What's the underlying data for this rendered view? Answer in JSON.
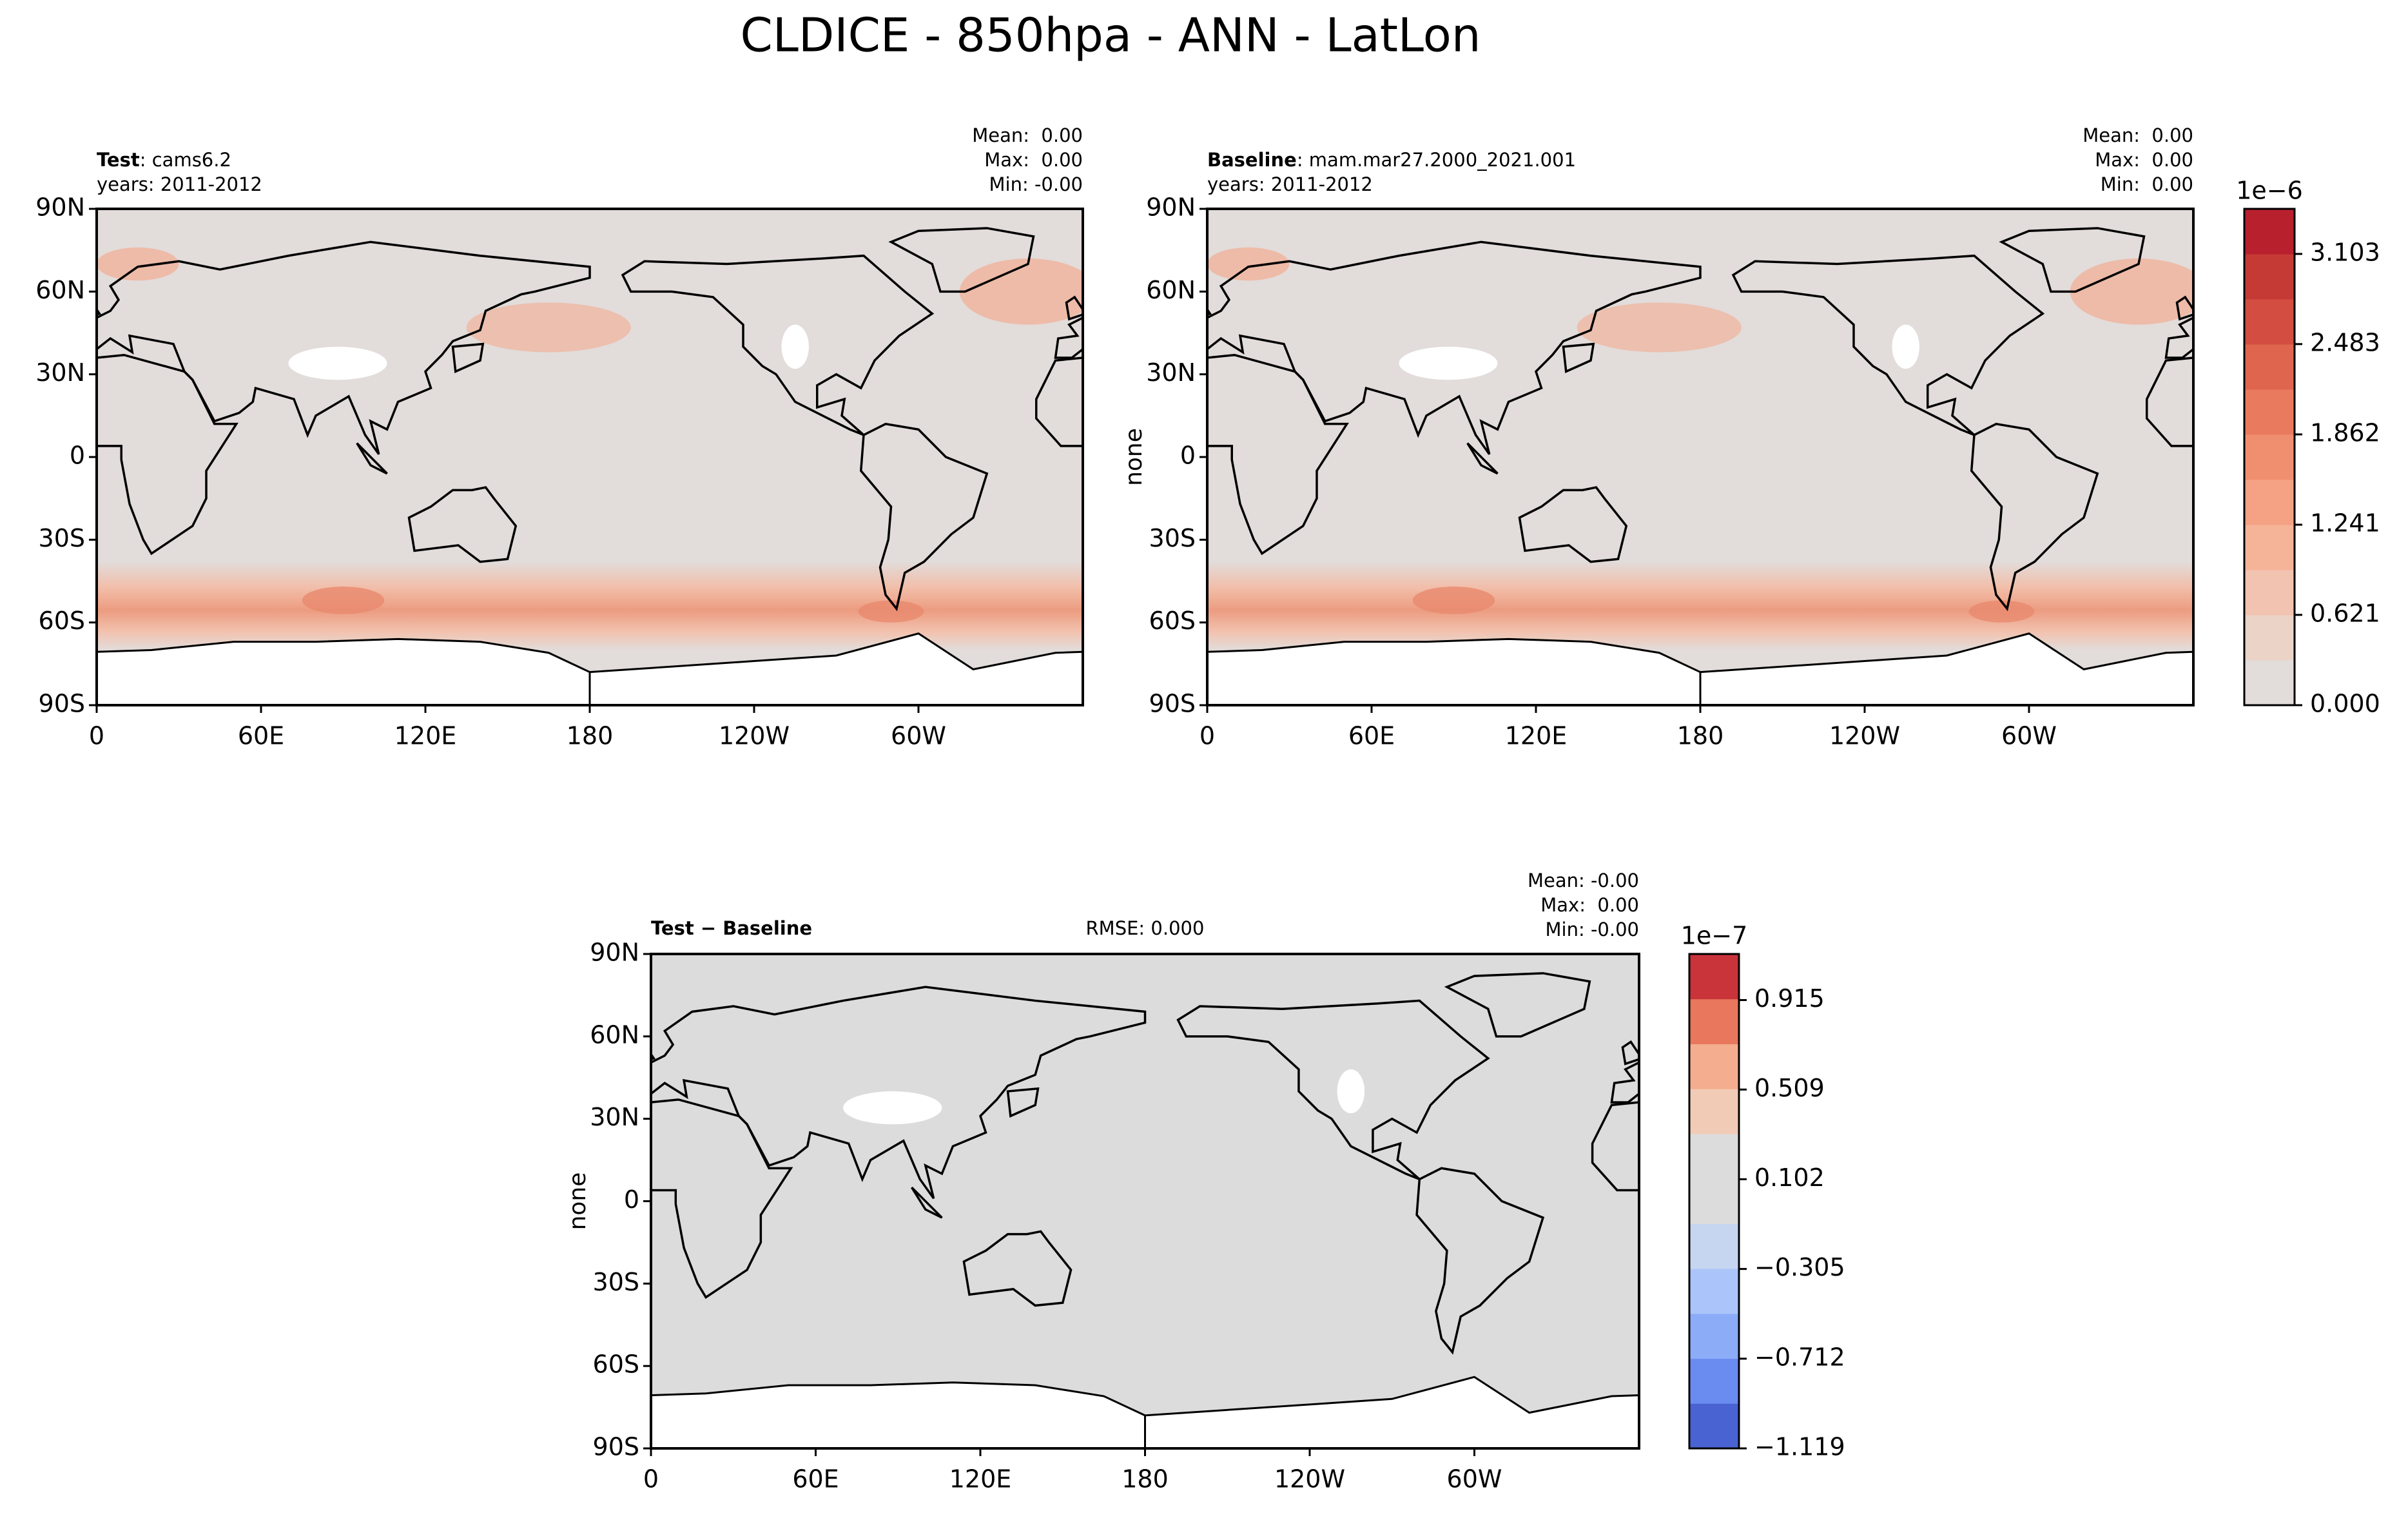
{
  "chart_data": [
    {
      "type": "contour-map",
      "title": "CLDICE - 850hpa - ANN - LatLon",
      "title_bold": "Test",
      "title_rest": ": cams6.2",
      "subtitle": "years: 2011-2012",
      "stats": [
        "Mean:  0.00",
        "Max:  0.00",
        "Min: -0.00"
      ],
      "xlim": [
        0,
        360
      ],
      "xticks": [
        0,
        {
          "value": 60,
          "label": "60E"
        },
        {
          "value": 120,
          "label": "120E"
        },
        180,
        {
          "value": 240,
          "label": "120W"
        },
        {
          "value": 300,
          "label": "60W"
        }
      ],
      "ylim": [
        -90,
        90
      ],
      "yticks": [
        {
          "value": -90,
          "label": "90S"
        },
        {
          "value": -60,
          "label": "60S"
        },
        {
          "value": -30,
          "label": "30S"
        },
        0,
        {
          "value": 30,
          "label": "30N"
        },
        {
          "value": 60,
          "label": "60N"
        },
        {
          "value": 90,
          "label": "90N"
        }
      ]
    },
    {
      "type": "contour-map",
      "title_bold": "Baseline",
      "title_rest": ": mam.mar27.2000_2021.001",
      "subtitle": "years: 2011-2012",
      "stats": [
        "Mean:  0.00",
        "Max:  0.00",
        "Min:  0.00"
      ],
      "ylabel": "none",
      "xlim": [
        0,
        360
      ],
      "xticks": [
        0,
        {
          "value": 60,
          "label": "60E"
        },
        {
          "value": 120,
          "label": "120E"
        },
        180,
        {
          "value": 240,
          "label": "120W"
        },
        {
          "value": 300,
          "label": "60W"
        }
      ],
      "ylim": [
        -90,
        90
      ],
      "yticks": [
        {
          "value": -90,
          "label": "90S"
        },
        {
          "value": -60,
          "label": "60S"
        },
        {
          "value": -30,
          "label": "30S"
        },
        0,
        {
          "value": 30,
          "label": "30N"
        },
        {
          "value": 60,
          "label": "60N"
        },
        {
          "value": 90,
          "label": "90N"
        }
      ],
      "colorbar": {
        "offset_label": "1e−6",
        "clim": [
          0,
          3.413
        ],
        "cticks": [
          {
            "value": 0,
            "label": "0.000"
          },
          0.621,
          1.241,
          1.862,
          2.483,
          3.103
        ],
        "colors": [
          "#e2dcda",
          "#ecd3c8",
          "#f2c3b0",
          "#f5b398",
          "#f4a283",
          "#f08f6f",
          "#e97a5d",
          "#e0654e",
          "#d34e41",
          "#c63a36",
          "#b8202e"
        ]
      }
    },
    {
      "type": "contour-map",
      "title_bold": "Test − Baseline",
      "center_text": "RMSE: 0.000",
      "stats": [
        "Mean: -0.00",
        "Max:  0.00",
        "Min: -0.00"
      ],
      "ylabel": "none",
      "xlim": [
        0,
        360
      ],
      "xticks": [
        0,
        {
          "value": 60,
          "label": "60E"
        },
        {
          "value": 120,
          "label": "120E"
        },
        180,
        {
          "value": 240,
          "label": "120W"
        },
        {
          "value": 300,
          "label": "60W"
        }
      ],
      "ylim": [
        -90,
        90
      ],
      "yticks": [
        {
          "value": -90,
          "label": "90S"
        },
        {
          "value": -60,
          "label": "60S"
        },
        {
          "value": -30,
          "label": "30S"
        },
        0,
        {
          "value": 30,
          "label": "30N"
        },
        {
          "value": 60,
          "label": "60N"
        },
        {
          "value": 90,
          "label": "90N"
        }
      ],
      "colorbar": {
        "offset_label": "1e−7",
        "clim": [
          -1.119,
          1.124
        ],
        "cticks": [
          {
            "value": -1.119,
            "label": "−1.119"
          },
          {
            "value": -0.712,
            "label": "−0.712"
          },
          {
            "value": -0.305,
            "label": "−0.305"
          },
          0.102,
          0.509,
          0.915
        ],
        "colors": [
          "#4a63d3",
          "#6a8bef",
          "#8cacf8",
          "#abc5fb",
          "#c6d5f0",
          "#dcdcdc",
          "#dcdcdc",
          "#f2cbb7",
          "#f4ad8e",
          "#e8775d",
          "#c9333a"
        ]
      }
    }
  ]
}
